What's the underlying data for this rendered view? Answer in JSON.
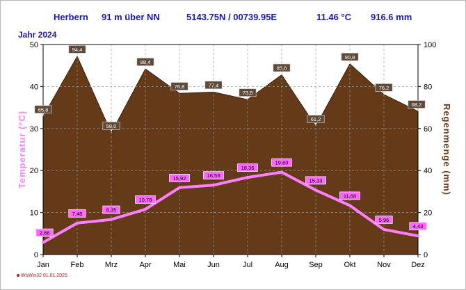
{
  "header": {
    "station": "Herbern",
    "elevation": "91 m über NN",
    "coordinates": "5143.75N / 00739.95E",
    "mean_temperature": "11.46 °C",
    "annual_precipitation": "916.6 mm"
  },
  "year_label": "Jahr  2024",
  "credit": "WsWin32  01.01.2025",
  "colors": {
    "precip_fill": "#643a19",
    "temperature_line": "#ff80ff",
    "temperature_label_bg": "#ff66ff",
    "left_axis_title": "#ff80ff",
    "right_axis_title": "#643a19",
    "header_text": "#1a1aa6"
  },
  "chart_data": {
    "type": "area",
    "categories": [
      "Jan",
      "Feb",
      "Mrz",
      "Apr",
      "Mai",
      "Jun",
      "Jul",
      "Aug",
      "Sep",
      "Okt",
      "Nov",
      "Dez"
    ],
    "series": [
      {
        "name": "Regenmenge  (mm)",
        "type": "area",
        "axis": "right",
        "values": [
          65.8,
          94.4,
          58.0,
          88.4,
          76.8,
          77.4,
          73.8,
          85.6,
          61.2,
          90.8,
          76.2,
          68.2
        ],
        "labels": [
          "65,8",
          "94,4",
          "58,0",
          "88,4",
          "76,8",
          "77,4",
          "73,8",
          "85,6",
          "61,2",
          "90,8",
          "76,2",
          "68,2"
        ]
      },
      {
        "name": "Temperatur  (°C)",
        "type": "line",
        "axis": "left",
        "values": [
          2.88,
          7.48,
          8.35,
          10.78,
          15.92,
          16.53,
          18.36,
          19.6,
          15.33,
          11.68,
          5.96,
          4.43
        ],
        "labels": [
          "2,88",
          "7,48",
          "8,35",
          "10,78",
          "15,92",
          "16,53",
          "18,36",
          "19,60",
          "15,33",
          "11,68",
          "5,96",
          "4,43"
        ]
      }
    ],
    "left_axis": {
      "label": "Temperatur  (°C)",
      "ylim": [
        0,
        50
      ],
      "ticks": [
        0,
        10,
        20,
        30,
        40,
        50
      ]
    },
    "right_axis": {
      "label": "Regenmenge  (mm)",
      "ylim": [
        0,
        100
      ],
      "ticks": [
        0,
        20,
        40,
        60,
        80,
        100
      ]
    },
    "grid": true
  }
}
